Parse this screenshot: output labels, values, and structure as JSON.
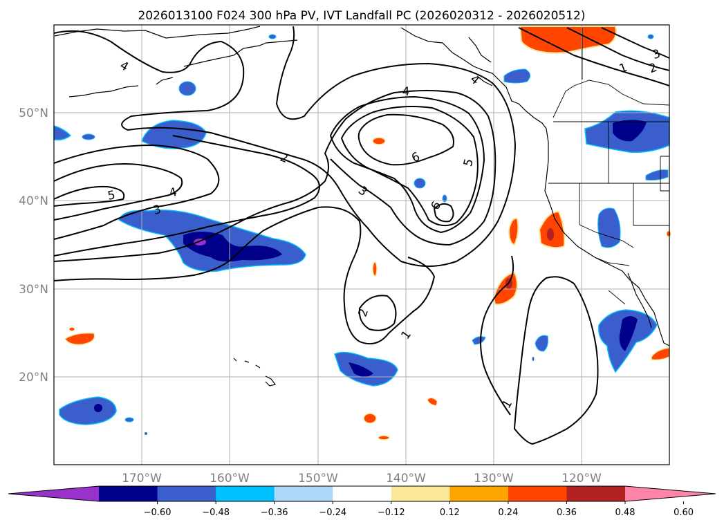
{
  "title": "2026013100 F024 300 hPa PV, IVT Landfall PC (2026020312 - 2026020512)",
  "lat_labels": [
    "50°N",
    "40°N",
    "30°N",
    "20°N"
  ],
  "lon_labels": [
    "170°W",
    "160°W",
    "150°W",
    "140°W",
    "130°W",
    "120°W"
  ],
  "colorbar": {
    "ticks": [
      "−0.60",
      "−0.48",
      "−0.36",
      "−0.24",
      "−0.12",
      "0.12",
      "0.24",
      "0.36",
      "0.48",
      "0.60"
    ],
    "colors": [
      "#9932cc",
      "#00008b",
      "#3a5fcd",
      "#00bfff",
      "#add8f7",
      "#ffffff",
      "#fbe79a",
      "#ffa500",
      "#ff4500",
      "#b22222",
      "#ff85a8"
    ],
    "extend": "both"
  },
  "contour_labels": [
    "4",
    "5",
    "4",
    "3",
    "2",
    "4",
    "4",
    "6",
    "5",
    "3",
    "6",
    "2",
    "1",
    "1",
    "3",
    "2",
    "1"
  ],
  "chart_data": {
    "type": "map",
    "projection": "PlateCarree",
    "extent": {
      "lon": [
        -180,
        -110
      ],
      "lat": [
        10,
        60
      ]
    },
    "gridlines": true,
    "filled_variable": "IVT Landfall PC",
    "contour_variable": "300 hPa PV",
    "contour_levels": [
      1,
      2,
      3,
      4,
      5,
      6
    ],
    "colorbar_levels": [
      -0.6,
      -0.48,
      -0.36,
      -0.24,
      -0.12,
      0.12,
      0.24,
      0.36,
      0.48,
      0.6
    ]
  }
}
